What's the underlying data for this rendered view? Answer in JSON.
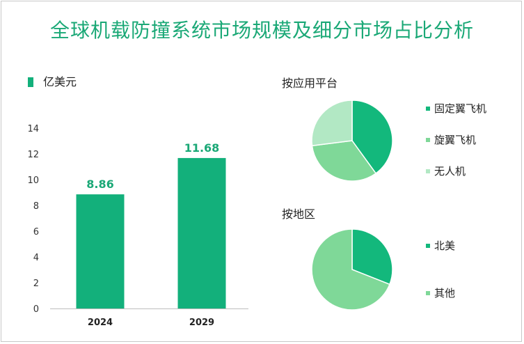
{
  "title": "全球机载防撞系统市场规模及细分市场占比分析",
  "unit_legend": "亿美元",
  "colors": {
    "title": "#1aa876",
    "bar": "#13b07b",
    "label": "#1aa876",
    "pie_dark": "#13b87c",
    "pie_mid": "#7fd898",
    "pie_light": "#b2e8c4"
  },
  "chart_data": [
    {
      "type": "bar",
      "categories": [
        "2024",
        "2029"
      ],
      "values": [
        8.86,
        11.68
      ],
      "data_labels": [
        "8.86",
        "11.68"
      ],
      "ylabel": "亿美元",
      "ylim": [
        0,
        14
      ],
      "yticks": [
        0,
        2,
        4,
        6,
        8,
        10,
        12,
        14
      ],
      "grid": false
    },
    {
      "type": "pie",
      "title": "按应用平台",
      "categories": [
        "固定翼飞机",
        "旋翼飞机",
        "无人机"
      ],
      "values": [
        40,
        33,
        27
      ],
      "colors": [
        "#13b87c",
        "#7fd898",
        "#b2e8c4"
      ],
      "legend_position": "right"
    },
    {
      "type": "pie",
      "title": "按地区",
      "categories": [
        "北美",
        "其他"
      ],
      "values": [
        31,
        69
      ],
      "colors": [
        "#13b87c",
        "#7fd898"
      ],
      "legend_position": "right"
    }
  ]
}
